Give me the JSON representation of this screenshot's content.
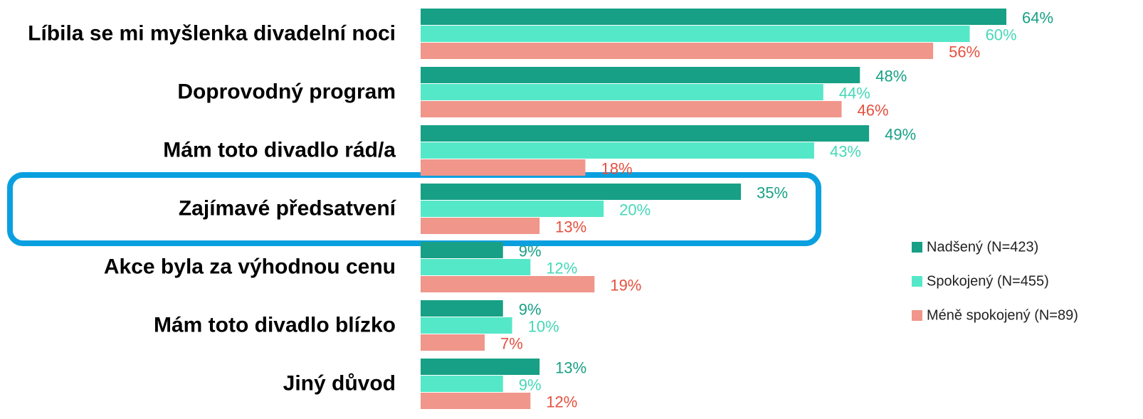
{
  "chart_data": {
    "type": "hbar",
    "categories": [
      "Líbila se mi myšlenka divadelní noci",
      "Doprovodný program",
      "Mám toto divadlo rád/a",
      "Zajímavé předsatvení",
      "Akce byla za výhodnou cenu",
      "Mám toto divadlo blízko",
      "Jiný důvod"
    ],
    "series": [
      {
        "name": "Nadšený (N=423)",
        "color": "#17a085",
        "label_color": "#17a085",
        "values": [
          64,
          48,
          49,
          35,
          9,
          9,
          13
        ],
        "value_labels": [
          "64%",
          "48%",
          "49%",
          "35%",
          "9%",
          "9%",
          "13%"
        ]
      },
      {
        "name": "Spokojený (N=455)",
        "color": "#55e8c8",
        "label_color": "#45d8b8",
        "values": [
          60,
          44,
          43,
          20,
          12,
          10,
          9
        ],
        "value_labels": [
          "60%",
          "44%",
          "43%",
          "20%",
          "12%",
          "10%",
          "9%"
        ]
      },
      {
        "name": "Méně spokojený (N=89)",
        "color": "#f0968b",
        "label_color": "#e5503f",
        "values": [
          56,
          46,
          18,
          13,
          19,
          7,
          12
        ],
        "value_labels": [
          "56%",
          "46%",
          "18%",
          "13%",
          "19%",
          "7%",
          "12%"
        ]
      }
    ],
    "legend": "right"
  }
}
